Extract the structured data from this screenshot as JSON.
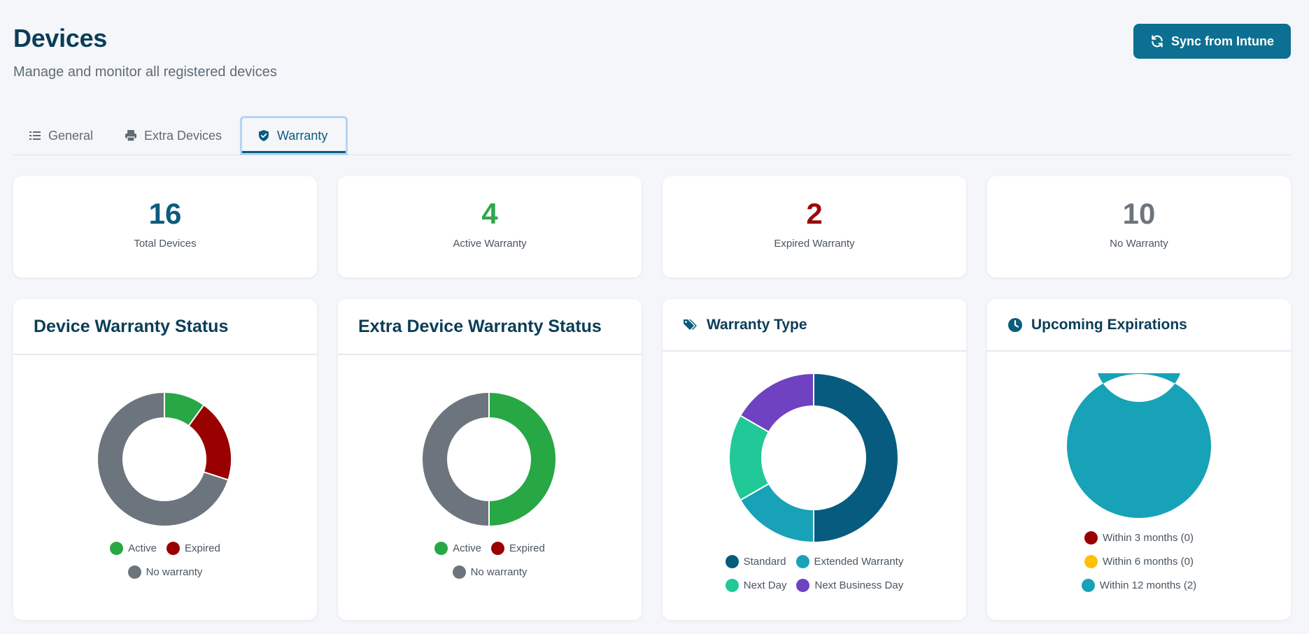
{
  "header": {
    "title": "Devices",
    "subtitle": "Manage and monitor all registered devices",
    "sync_label": "Sync from Intune",
    "sync_icon": "sync-icon"
  },
  "tabs": [
    {
      "label": "General",
      "icon": "list-icon",
      "active": false
    },
    {
      "label": "Extra Devices",
      "icon": "printer-icon",
      "active": false
    },
    {
      "label": "Warranty",
      "icon": "shield-check-icon",
      "active": true
    }
  ],
  "stats": [
    {
      "value": "16",
      "label": "Total Devices",
      "color": "#0b5c7d"
    },
    {
      "value": "4",
      "label": "Active Warranty",
      "color": "#2ea84a"
    },
    {
      "value": "2",
      "label": "Expired Warranty",
      "color": "#9b0a0a"
    },
    {
      "value": "10",
      "label": "No Warranty",
      "color": "#6c757d"
    }
  ],
  "colors": {
    "active": "#28a745",
    "expired": "#990000",
    "no_warranty": "#6c757d",
    "standard": "#075b7e",
    "extended": "#17a2b8",
    "next_day": "#20c997",
    "next_business_day": "#6f42c1",
    "within3": "#990000",
    "within6": "#ffc107",
    "within12": "#17a2b8"
  },
  "charts": {
    "device_status": {
      "title": "Device Warranty Status",
      "legend": [
        "Active",
        "Expired",
        "No warranty"
      ]
    },
    "extra_status": {
      "title": "Extra Device Warranty Status",
      "legend": [
        "Active",
        "Expired",
        "No warranty"
      ]
    },
    "warranty_type": {
      "title": "Warranty Type",
      "icon": "tags-icon",
      "legend": [
        "Standard",
        "Extended Warranty",
        "Next Day",
        "Next Business Day"
      ]
    },
    "upcoming": {
      "title": "Upcoming Expirations",
      "icon": "clock-icon",
      "legend": [
        "Within 3 months (0)",
        "Within 6 months (0)",
        "Within 12 months (2)"
      ]
    }
  },
  "chart_data": [
    {
      "type": "pie",
      "title": "Device Warranty Status",
      "categories": [
        "Active",
        "Expired",
        "No warranty"
      ],
      "values": [
        1,
        2,
        7
      ]
    },
    {
      "type": "pie",
      "title": "Extra Device Warranty Status",
      "categories": [
        "Active",
        "Expired",
        "No warranty"
      ],
      "values": [
        1,
        0,
        1
      ]
    },
    {
      "type": "pie",
      "title": "Warranty Type",
      "categories": [
        "Standard",
        "Extended Warranty",
        "Next Day",
        "Next Business Day"
      ],
      "values": [
        3,
        1,
        1,
        1
      ]
    },
    {
      "type": "pie",
      "title": "Upcoming Expirations",
      "categories": [
        "Within 3 months (0)",
        "Within 6 months (0)",
        "Within 12 months (2)"
      ],
      "values": [
        0,
        0,
        2
      ]
    }
  ]
}
